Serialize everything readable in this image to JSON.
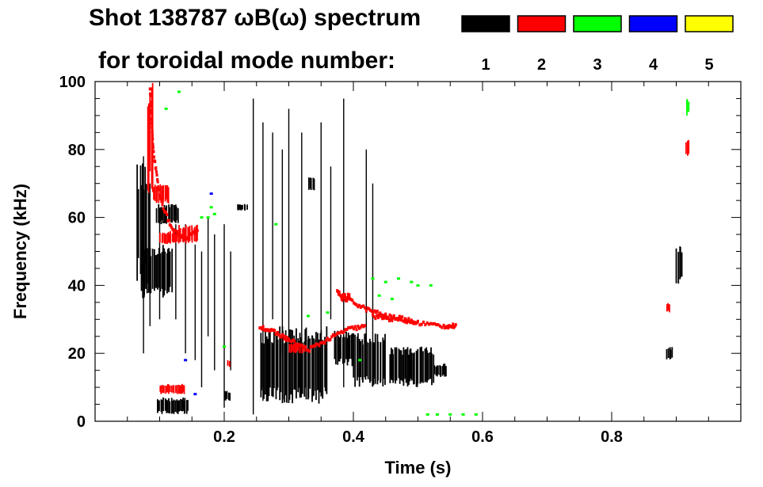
{
  "chart_data": {
    "type": "heatmap",
    "title": "Shot 138787 ωB(ω) spectrum",
    "subtitle": "for toroidal mode number:",
    "xlabel": "Time (s)",
    "ylabel": "Frequency (kHz)",
    "xlim": [
      0.0,
      1.0
    ],
    "ylim": [
      0,
      100
    ],
    "x_ticks": [
      "0.2",
      "0.4",
      "0.6",
      "0.8"
    ],
    "x_tick_values": [
      0.2,
      0.4,
      0.6,
      0.8
    ],
    "y_ticks": [
      "0",
      "20",
      "40",
      "60",
      "80",
      "100"
    ],
    "y_tick_values": [
      0,
      20,
      40,
      60,
      80,
      100
    ],
    "legend": [
      {
        "mode": "1",
        "color": "#000000"
      },
      {
        "mode": "2",
        "color": "#ff0000"
      },
      {
        "mode": "3",
        "color": "#00ff00"
      },
      {
        "mode": "4",
        "color": "#0000ff"
      },
      {
        "mode": "5",
        "color": "#ffff00"
      }
    ],
    "legend_placement": "top-right",
    "grid": false,
    "series": [
      {
        "mode": 1,
        "color": "#000000",
        "blobs": [
          {
            "t": [
              0.065,
              0.085
            ],
            "f": [
              40,
              76
            ]
          },
          {
            "t": [
              0.07,
              0.12
            ],
            "f": [
              36,
              52
            ]
          },
          {
            "t": [
              0.095,
              0.13
            ],
            "f": [
              58,
              64
            ]
          },
          {
            "t": [
              0.095,
              0.145
            ],
            "f": [
              2,
              7
            ]
          },
          {
            "t": [
              0.22,
              0.236
            ],
            "f": [
              62,
              64
            ]
          },
          {
            "t": [
              0.255,
              0.36
            ],
            "f": [
              5,
              28
            ]
          },
          {
            "t": [
              0.33,
              0.34
            ],
            "f": [
              68,
              72
            ]
          },
          {
            "t": [
              0.37,
              0.4
            ],
            "f": [
              16,
              27
            ]
          },
          {
            "t": [
              0.4,
              0.45
            ],
            "f": [
              10,
              26
            ]
          },
          {
            "t": [
              0.455,
              0.525
            ],
            "f": [
              10,
              22
            ]
          },
          {
            "t": [
              0.525,
              0.545
            ],
            "f": [
              13,
              17
            ]
          },
          {
            "t": [
              0.885,
              0.895
            ],
            "f": [
              18,
              22
            ]
          },
          {
            "t": [
              0.9,
              0.91
            ],
            "f": [
              40,
              52
            ]
          },
          {
            "t": [
              0.2,
              0.21
            ],
            "f": [
              6,
              9
            ]
          }
        ],
        "streaks": [
          {
            "t": 0.075,
            "f": [
              20,
              78
            ]
          },
          {
            "t": 0.085,
            "f": [
              28,
              70
            ]
          },
          {
            "t": 0.1,
            "f": [
              30,
              62
            ]
          },
          {
            "t": 0.125,
            "f": [
              30,
              58
            ]
          },
          {
            "t": 0.14,
            "f": [
              20,
              58
            ]
          },
          {
            "t": 0.155,
            "f": [
              18,
              52
            ]
          },
          {
            "t": 0.165,
            "f": [
              10,
              50
            ]
          },
          {
            "t": 0.175,
            "f": [
              25,
              60
            ]
          },
          {
            "t": 0.185,
            "f": [
              15,
              55
            ]
          },
          {
            "t": 0.2,
            "f": [
              4,
              58
            ]
          },
          {
            "t": 0.21,
            "f": [
              15,
              50
            ]
          },
          {
            "t": 0.245,
            "f": [
              2,
              95
            ]
          },
          {
            "t": 0.26,
            "f": [
              6,
              88
            ]
          },
          {
            "t": 0.275,
            "f": [
              30,
              85
            ]
          },
          {
            "t": 0.29,
            "f": [
              20,
              80
            ]
          },
          {
            "t": 0.3,
            "f": [
              22,
              92
            ]
          },
          {
            "t": 0.32,
            "f": [
              15,
              85
            ]
          },
          {
            "t": 0.35,
            "f": [
              18,
              88
            ]
          },
          {
            "t": 0.365,
            "f": [
              30,
              75
            ]
          },
          {
            "t": 0.385,
            "f": [
              10,
              95
            ]
          },
          {
            "t": 0.42,
            "f": [
              15,
              80
            ]
          },
          {
            "t": 0.43,
            "f": [
              20,
              70
            ]
          }
        ]
      },
      {
        "mode": 2,
        "color": "#ff0000",
        "blobs": [
          {
            "t": [
              0.08,
              0.09
            ],
            "f": [
              66,
              100
            ]
          },
          {
            "t": [
              0.09,
              0.115
            ],
            "f": [
              64,
              70
            ]
          },
          {
            "t": [
              0.1,
              0.13
            ],
            "f": [
              52,
              56
            ]
          },
          {
            "t": [
              0.13,
              0.16
            ],
            "f": [
              52,
              58
            ]
          },
          {
            "t": [
              0.3,
              0.325
            ],
            "f": [
              20,
              23
            ]
          },
          {
            "t": [
              0.38,
              0.395
            ],
            "f": [
              35,
              38
            ]
          },
          {
            "t": [
              0.915,
              0.92
            ],
            "f": [
              78,
              83
            ]
          },
          {
            "t": [
              0.885,
              0.89
            ],
            "f": [
              32,
              35
            ]
          },
          {
            "t": [
              0.1,
              0.14
            ],
            "f": [
              8,
              11
            ]
          },
          {
            "t": [
              0.205,
              0.21
            ],
            "f": [
              16,
              18
            ]
          }
        ],
        "curves": [
          {
            "t": [
              0.085,
              0.09,
              0.1,
              0.12,
              0.14,
              0.16
            ],
            "f": [
              98,
              80,
              66,
              56,
              54,
              56
            ]
          },
          {
            "t": [
              0.255,
              0.28,
              0.3,
              0.33,
              0.36,
              0.39,
              0.42
            ],
            "f": [
              28,
              26,
              24,
              21,
              24,
              27,
              28
            ]
          },
          {
            "t": [
              0.375,
              0.39,
              0.42,
              0.45,
              0.48,
              0.5
            ],
            "f": [
              38,
              36,
              33,
              31,
              30,
              29
            ]
          },
          {
            "t": [
              0.43,
              0.46,
              0.5,
              0.54,
              0.56
            ],
            "f": [
              31,
              30,
              29,
              28,
              28
            ]
          }
        ]
      },
      {
        "mode": 3,
        "color": "#00ff00",
        "points": [
          [
            0.18,
            63
          ],
          [
            0.185,
            61
          ],
          [
            0.175,
            60
          ],
          [
            0.11,
            92
          ],
          [
            0.13,
            97
          ],
          [
            0.28,
            58
          ],
          [
            0.36,
            32
          ],
          [
            0.41,
            18
          ],
          [
            0.43,
            42
          ],
          [
            0.45,
            41
          ],
          [
            0.47,
            42
          ],
          [
            0.49,
            41
          ],
          [
            0.5,
            40
          ],
          [
            0.515,
            2
          ],
          [
            0.53,
            2
          ],
          [
            0.55,
            2
          ],
          [
            0.57,
            2
          ],
          [
            0.59,
            2
          ],
          [
            0.46,
            36
          ],
          [
            0.2,
            22
          ],
          [
            0.165,
            60
          ],
          [
            0.33,
            31
          ],
          [
            0.44,
            37
          ],
          [
            0.52,
            40
          ]
        ],
        "blobs": [
          {
            "t": [
              0.915,
              0.92
            ],
            "f": [
              90,
              95
            ]
          }
        ]
      },
      {
        "mode": 4,
        "color": "#0000ff",
        "points": [
          [
            0.18,
            67
          ],
          [
            0.155,
            8
          ],
          [
            0.14,
            18
          ]
        ]
      },
      {
        "mode": 5,
        "color": "#ffff00",
        "points": []
      }
    ]
  }
}
